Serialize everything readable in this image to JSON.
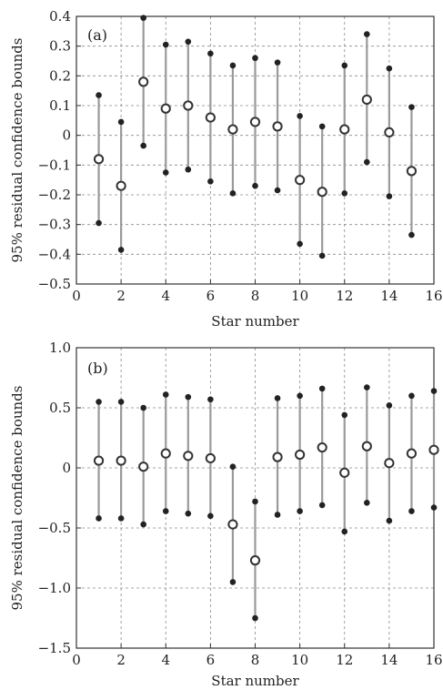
{
  "chart_data": [
    {
      "type": "scatter",
      "panel_label": "(a)",
      "xlabel": "Star number",
      "ylabel": "95% residual confidence bounds",
      "xlim": [
        0,
        16
      ],
      "ylim": [
        -0.5,
        0.4
      ],
      "xticks": [
        0,
        2,
        4,
        6,
        8,
        10,
        12,
        14,
        16
      ],
      "xtick_labels": [
        "0",
        "2",
        "4",
        "6",
        "8",
        "10",
        "12",
        "14",
        "16"
      ],
      "yticks": [
        -0.5,
        -0.4,
        -0.3,
        -0.2,
        -0.1,
        0,
        0.1,
        0.2,
        0.3,
        0.4
      ],
      "ytick_labels": [
        "−0.5",
        "−0.4",
        "−0.3",
        "−0.2",
        "−0.1",
        "0",
        "0.1",
        "0.2",
        "0.3",
        "0.4"
      ],
      "grid": true,
      "x": [
        1,
        2,
        3,
        4,
        5,
        6,
        7,
        8,
        9,
        10,
        11,
        12,
        13,
        14,
        15
      ],
      "residual": [
        -0.08,
        -0.17,
        0.18,
        0.09,
        0.1,
        0.06,
        0.02,
        0.045,
        0.03,
        -0.15,
        -0.19,
        0.02,
        0.12,
        0.01,
        -0.12
      ],
      "upper": [
        0.135,
        0.045,
        0.395,
        0.305,
        0.315,
        0.275,
        0.235,
        0.26,
        0.245,
        0.065,
        0.03,
        0.235,
        0.34,
        0.225,
        0.095
      ],
      "lower": [
        -0.295,
        -0.385,
        -0.035,
        -0.125,
        -0.115,
        -0.155,
        -0.195,
        -0.17,
        -0.185,
        -0.365,
        -0.405,
        -0.195,
        -0.09,
        -0.205,
        -0.335
      ]
    },
    {
      "type": "scatter",
      "panel_label": "(b)",
      "xlabel": "Star number",
      "ylabel": "95% residual confidence bounds",
      "xlim": [
        0,
        16
      ],
      "ylim": [
        -1.5,
        1.0
      ],
      "xticks": [
        0,
        2,
        4,
        6,
        8,
        10,
        12,
        14,
        16
      ],
      "xtick_labels": [
        "0",
        "2",
        "4",
        "6",
        "8",
        "10",
        "12",
        "14",
        "16"
      ],
      "yticks": [
        -1.5,
        -1.0,
        -0.5,
        0,
        0.5,
        1.0
      ],
      "ytick_labels": [
        "−1.5",
        "−1.0",
        "−0.5",
        "0",
        "0.5",
        "1.0"
      ],
      "grid": true,
      "x": [
        1,
        2,
        3,
        4,
        5,
        6,
        7,
        8,
        9,
        10,
        11,
        12,
        13,
        14,
        15,
        16
      ],
      "residual": [
        0.06,
        0.06,
        0.01,
        0.12,
        0.1,
        0.08,
        -0.47,
        -0.77,
        0.09,
        0.11,
        0.17,
        -0.04,
        0.18,
        0.04,
        0.12,
        0.15
      ],
      "upper": [
        0.55,
        0.55,
        0.5,
        0.61,
        0.59,
        0.57,
        0.01,
        -0.28,
        0.58,
        0.6,
        0.66,
        0.44,
        0.67,
        0.52,
        0.6,
        0.64
      ],
      "lower": [
        -0.42,
        -0.42,
        -0.47,
        -0.36,
        -0.38,
        -0.4,
        -0.95,
        -1.25,
        -0.39,
        -0.36,
        -0.31,
        -0.53,
        -0.29,
        -0.44,
        -0.36,
        -0.33
      ]
    }
  ]
}
